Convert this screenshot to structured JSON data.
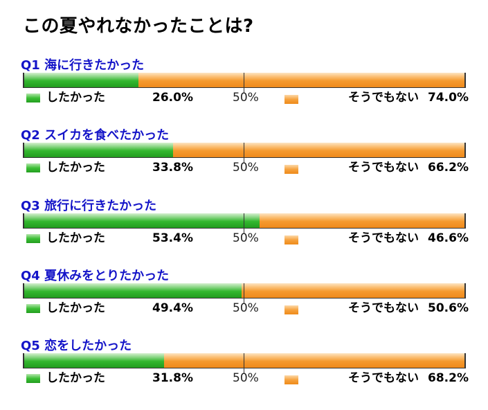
{
  "page": {
    "title": "この夏やれなかったことは?"
  },
  "legend": {
    "yes_label": "したかった",
    "no_label": "そうでもない",
    "midpoint_label": "50%"
  },
  "colors": {
    "yes": "#34b82f",
    "no": "#f59a2f",
    "question_title": "#1414c8"
  },
  "chart_data": {
    "type": "bar",
    "stacked": true,
    "orientation": "horizontal",
    "xlim": [
      0,
      100
    ],
    "categories": [
      "Q1 海に行きたかった",
      "Q2 スイカを食べたかった",
      "Q3 旅行に行きたかった",
      "Q4 夏休みをとりたかった",
      "Q5 恋をしたかった"
    ],
    "series": [
      {
        "name": "したかった",
        "values": [
          26.0,
          33.8,
          53.4,
          49.4,
          31.8
        ]
      },
      {
        "name": "そうでもない",
        "values": [
          74.0,
          66.2,
          46.6,
          50.6,
          68.2
        ]
      }
    ],
    "value_labels": {
      "yes": [
        "26.0%",
        "33.8%",
        "53.4%",
        "49.4%",
        "31.8%"
      ],
      "no": [
        "74.0%",
        "66.2%",
        "46.6%",
        "50.6%",
        "68.2%"
      ]
    }
  }
}
